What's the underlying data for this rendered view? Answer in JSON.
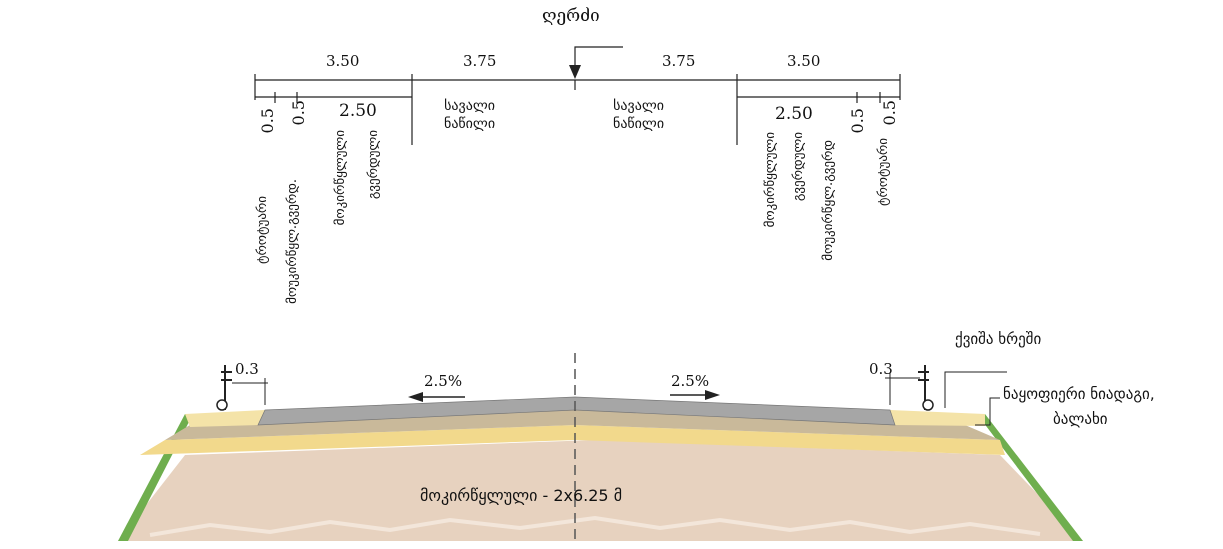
{
  "axis_label": "ღერძი",
  "widths": {
    "left_shoulder": "3.50",
    "left_lane": "3.75",
    "right_lane": "3.75",
    "right_shoulder": "3.50",
    "left_paved_shoulder": "2.50",
    "right_paved_shoulder": "2.50",
    "left_sidewalk": "0.5",
    "left_edge_strip": "0.5",
    "right_edge_strip": "0.5",
    "right_sidewalk": "0.5"
  },
  "lane_label_line1": "სავალი",
  "lane_label_line2": "ნაწილი",
  "vertical_labels": {
    "sidewalk_left": "ტროტუარი",
    "edge_strip_left": "მოუკირწყლ.გვერდ.",
    "paved_shoulder_left_1": "მოკირწყლული",
    "paved_shoulder_left_2": "გვერდული",
    "paved_shoulder_right_1": "მოკირწყლული",
    "paved_shoulder_right_2": "გვერდული",
    "edge_strip_right": "მოუკირწყლ.გვერდ",
    "sidewalk_right": "ტროტუარი"
  },
  "offsets": {
    "left": "0.3",
    "right": "0.3"
  },
  "slopes": {
    "left": "2.5%",
    "right": "2.5%"
  },
  "materials": {
    "gravel": "ქვიშა ხრეში",
    "subgrade_line1": "ნაყოფიერი ნიადაგი,",
    "subgrade_line2": "ბალახი"
  },
  "bottom_label": "მოკირწყლული - 2x6.25 მ",
  "colors": {
    "asphalt": "#a6a6a6",
    "base_layer": "#c9b99a",
    "subbase": "#f2d98c",
    "embankment": "#e7d2bf",
    "grass": "#6fae4e",
    "line": "#222222"
  }
}
